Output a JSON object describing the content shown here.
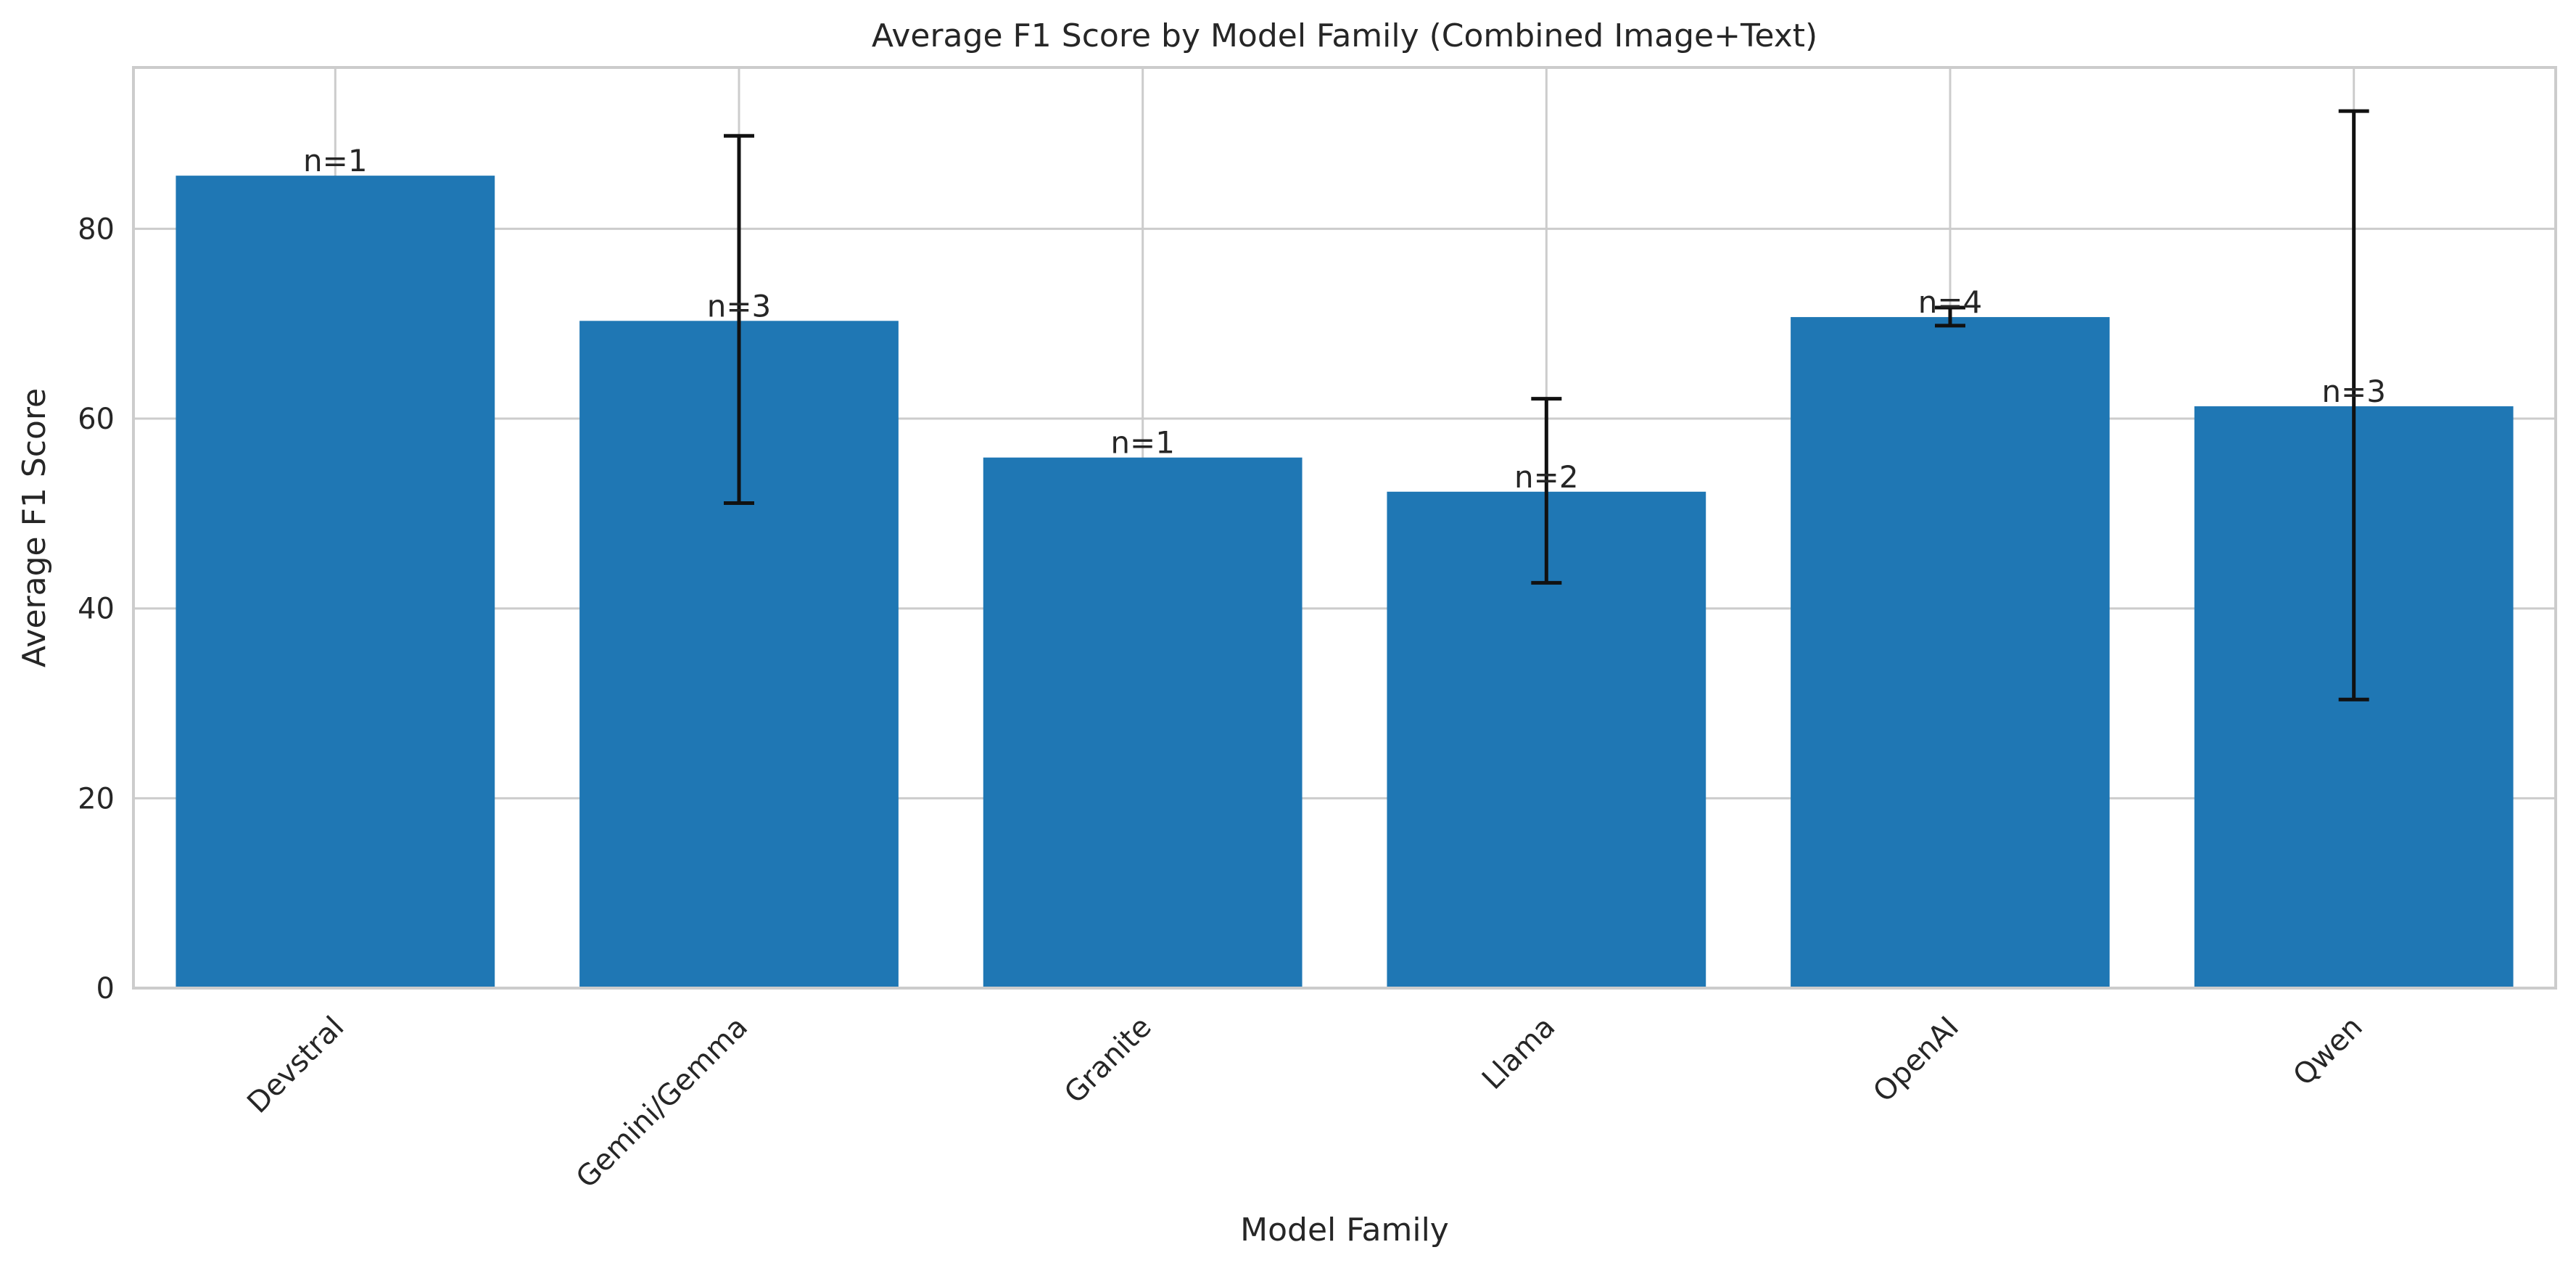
{
  "chart_data": {
    "type": "bar",
    "title": "Average F1 Score by Model Family (Combined Image+Text)",
    "xlabel": "Model Family",
    "ylabel": "Average F1 Score",
    "categories": [
      "Devstral",
      "Gemini/Gemma",
      "Granite",
      "Llama",
      "OpenAI",
      "Qwen"
    ],
    "values": [
      85.6,
      70.3,
      55.9,
      52.3,
      70.7,
      61.3
    ],
    "error_low": [
      null,
      51.1,
      null,
      42.7,
      69.8,
      30.4
    ],
    "error_high": [
      null,
      89.8,
      null,
      62.1,
      71.7,
      92.4
    ],
    "counts": [
      "n=1",
      "n=3",
      "n=1",
      "n=2",
      "n=4",
      "n=3"
    ],
    "ylim": [
      0,
      97
    ],
    "yticks": [
      0,
      20,
      40,
      60,
      80
    ],
    "grid": true,
    "bar_color": "#1f77b4",
    "errorbar_color": "#111111",
    "grid_color": "#cccccc"
  }
}
